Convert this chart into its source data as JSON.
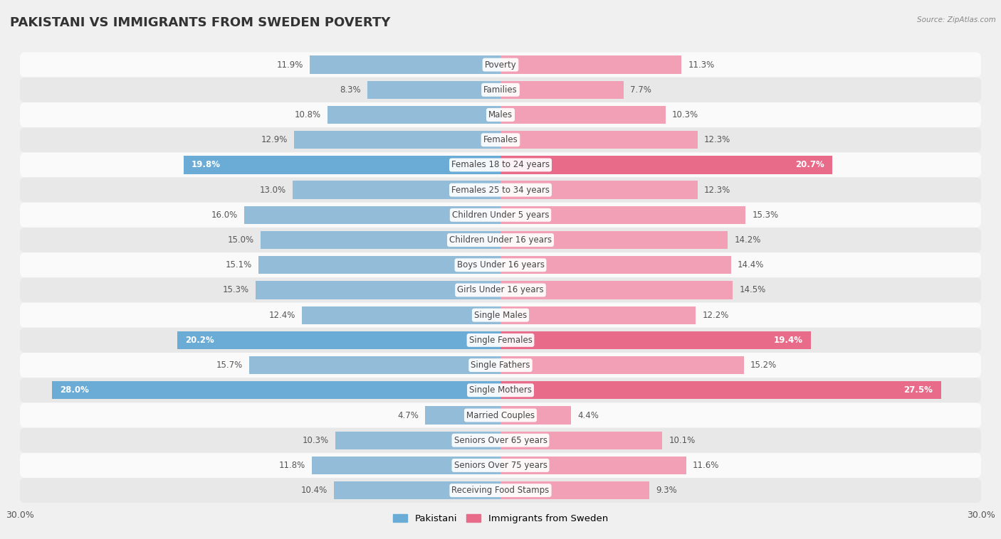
{
  "title": "PAKISTANI VS IMMIGRANTS FROM SWEDEN POVERTY",
  "source": "Source: ZipAtlas.com",
  "categories": [
    "Poverty",
    "Families",
    "Males",
    "Females",
    "Females 18 to 24 years",
    "Females 25 to 34 years",
    "Children Under 5 years",
    "Children Under 16 years",
    "Boys Under 16 years",
    "Girls Under 16 years",
    "Single Males",
    "Single Females",
    "Single Fathers",
    "Single Mothers",
    "Married Couples",
    "Seniors Over 65 years",
    "Seniors Over 75 years",
    "Receiving Food Stamps"
  ],
  "pakistani": [
    11.9,
    8.3,
    10.8,
    12.9,
    19.8,
    13.0,
    16.0,
    15.0,
    15.1,
    15.3,
    12.4,
    20.2,
    15.7,
    28.0,
    4.7,
    10.3,
    11.8,
    10.4
  ],
  "immigrants": [
    11.3,
    7.7,
    10.3,
    12.3,
    20.7,
    12.3,
    15.3,
    14.2,
    14.4,
    14.5,
    12.2,
    19.4,
    15.2,
    27.5,
    4.4,
    10.1,
    11.6,
    9.3
  ],
  "pakistani_color_normal": "#92bcd8",
  "pakistani_color_highlight": "#6aacd5",
  "immigrants_color_normal": "#f2a0b5",
  "immigrants_color_highlight": "#e96b8a",
  "highlight_rows": [
    4,
    11,
    13
  ],
  "bar_height": 0.72,
  "xlim": 30.0,
  "background_color": "#f0f0f0",
  "row_bg_light": "#fafafa",
  "row_bg_dark": "#e8e8e8",
  "title_fontsize": 13,
  "label_fontsize": 8.5,
  "value_fontsize": 8.5,
  "legend_labels": [
    "Pakistani",
    "Immigrants from Sweden"
  ]
}
